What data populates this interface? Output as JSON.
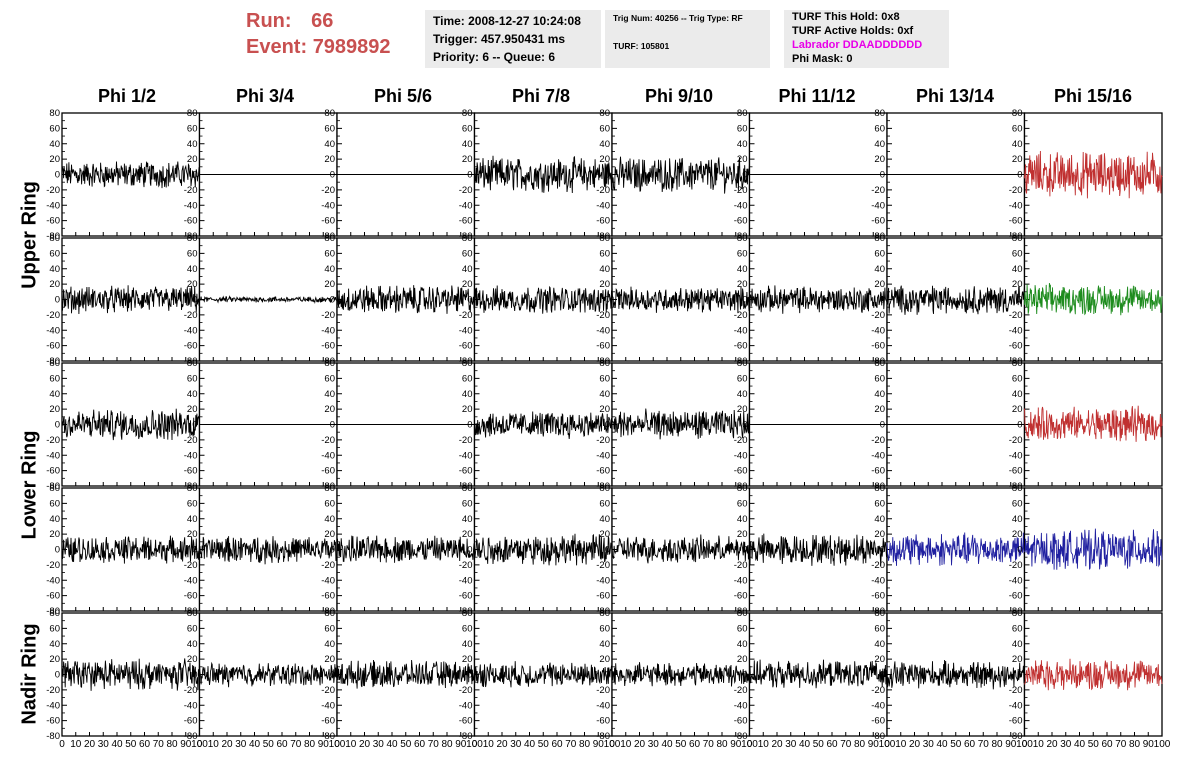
{
  "header": {
    "run_label": "Run:",
    "run_value": "66",
    "event_label": "Event:",
    "event_value": "7989892",
    "time_text": "Time: 2008-12-27 10:24:08",
    "trigger_text": "Trigger: 457.950431 ms",
    "priority_text": "Priority: 6 -- Queue: 6",
    "trig_num_text": "Trig Num: 40256 -- Trig Type: RF",
    "turf_text": "TURF: 105801",
    "turf_hold_text": "TURF This Hold: 0x8",
    "turf_active_text": "TURF Active Holds: 0xf",
    "labrador_text": "Labrador DDAADDDDDD",
    "phi_mask_text": "Phi Mask: 0",
    "labrador_color": "#e800e8",
    "run_color": "#c85050"
  },
  "chart_data": {
    "type": "line",
    "columns": [
      "Phi 1/2",
      "Phi 3/4",
      "Phi 5/6",
      "Phi 7/8",
      "Phi 9/10",
      "Phi 11/12",
      "Phi 13/14",
      "Phi 15/16"
    ],
    "row_labels": [
      "Upper Ring",
      "Lower Ring",
      "Nadir Ring"
    ],
    "xlim": [
      0,
      100
    ],
    "ylim": [
      -80,
      80
    ],
    "y_ticks": [
      -80,
      -60,
      -40,
      -20,
      0,
      20,
      40,
      60,
      80
    ],
    "y_tick_labels": [
      "-80",
      "-60",
      "-40",
      "-20",
      "0",
      "20",
      "40",
      "60",
      "80"
    ],
    "x_ticks": [
      0,
      10,
      20,
      30,
      40,
      50,
      60,
      70,
      80,
      90,
      100
    ],
    "x_tick_labels": [
      "0",
      "10",
      "20",
      "30",
      "40",
      "50",
      "60",
      "70",
      "80",
      "90",
      "100"
    ],
    "grid": false,
    "colors": {
      "default": "#000000",
      "red": "#c03030",
      "green": "#1e8c1e",
      "blue": "#2020a0"
    },
    "panels": [
      [
        {
          "amp": 14,
          "color": "default"
        },
        {
          "amp": 0,
          "color": "default"
        },
        {
          "amp": 0,
          "color": "default"
        },
        {
          "amp": 18,
          "color": "default"
        },
        {
          "amp": 18,
          "color": "default"
        },
        {
          "amp": 0,
          "color": "default"
        },
        {
          "amp": 0,
          "color": "default"
        },
        {
          "amp": 24,
          "color": "red"
        }
      ],
      [
        {
          "amp": 14,
          "color": "default"
        },
        {
          "amp": 3,
          "color": "default"
        },
        {
          "amp": 15,
          "color": "default"
        },
        {
          "amp": 14,
          "color": "default"
        },
        {
          "amp": 13,
          "color": "default"
        },
        {
          "amp": 14,
          "color": "default"
        },
        {
          "amp": 15,
          "color": "default"
        },
        {
          "amp": 16,
          "color": "green"
        }
      ],
      [
        {
          "amp": 16,
          "color": "default"
        },
        {
          "amp": 0,
          "color": "default"
        },
        {
          "amp": 0,
          "color": "default"
        },
        {
          "amp": 14,
          "color": "default"
        },
        {
          "amp": 15,
          "color": "default"
        },
        {
          "amp": 0,
          "color": "default"
        },
        {
          "amp": 0,
          "color": "default"
        },
        {
          "amp": 18,
          "color": "red"
        }
      ],
      [
        {
          "amp": 14,
          "color": "default"
        },
        {
          "amp": 14,
          "color": "default"
        },
        {
          "amp": 14,
          "color": "default"
        },
        {
          "amp": 16,
          "color": "default"
        },
        {
          "amp": 14,
          "color": "default"
        },
        {
          "amp": 16,
          "color": "default"
        },
        {
          "amp": 17,
          "color": "blue"
        },
        {
          "amp": 20,
          "color": "blue"
        }
      ],
      [
        {
          "amp": 16,
          "color": "default"
        },
        {
          "amp": 12,
          "color": "default"
        },
        {
          "amp": 14,
          "color": "default"
        },
        {
          "amp": 13,
          "color": "default"
        },
        {
          "amp": 12,
          "color": "default"
        },
        {
          "amp": 14,
          "color": "default"
        },
        {
          "amp": 14,
          "color": "default"
        },
        {
          "amp": 16,
          "color": "red"
        }
      ]
    ]
  }
}
